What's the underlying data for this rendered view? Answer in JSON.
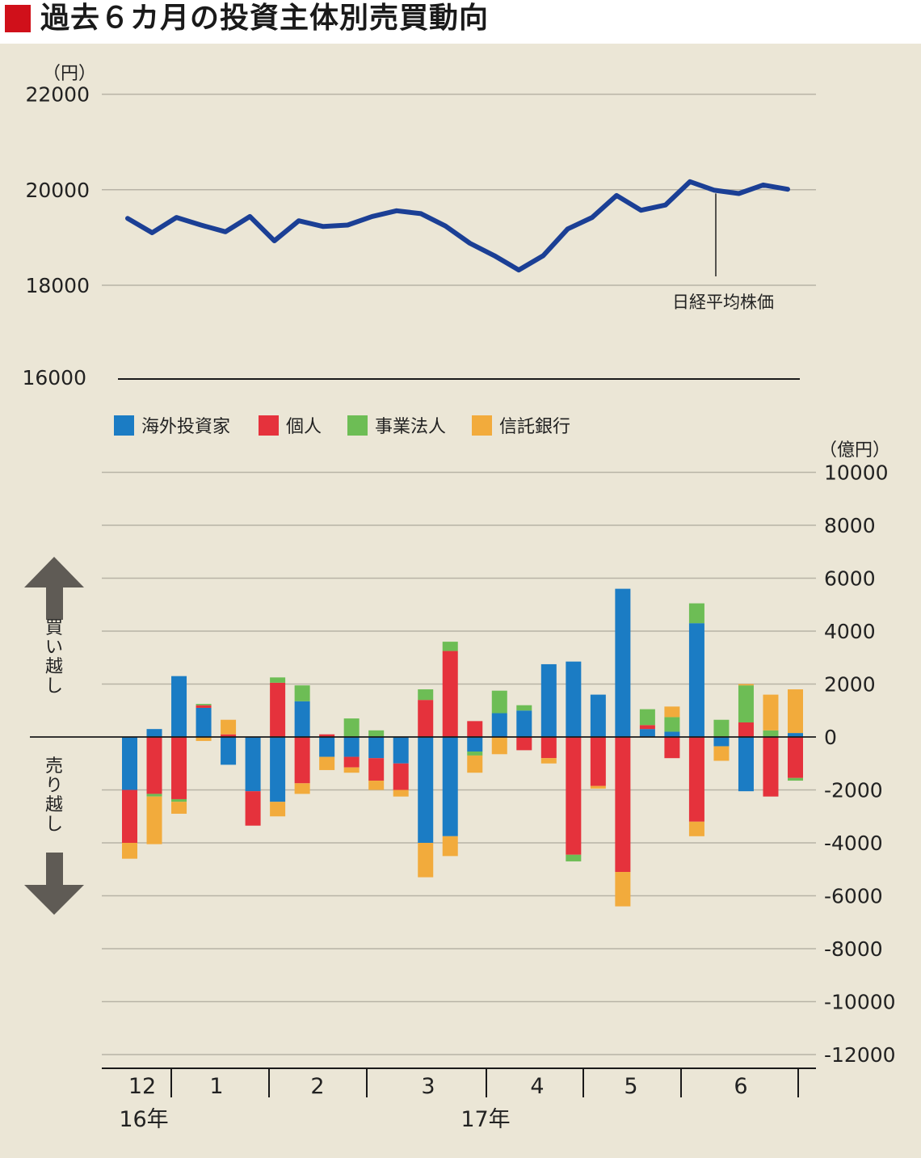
{
  "header": {
    "title": "過去６カ月の投資主体別売買動向"
  },
  "colors": {
    "line": "#1b3f95",
    "foreign": "#1b7cc4",
    "individual": "#e5323c",
    "corporate": "#6dbd55",
    "trust": "#f2ab3c",
    "grid": "#b8b3a6",
    "arrow": "#5f5b55",
    "panel": "#ebe6d6"
  },
  "chart_data": [
    {
      "type": "line",
      "unit_label": "（円）",
      "yticks": [
        "22000",
        "20000",
        "18000",
        "16000"
      ],
      "ylim": [
        16000,
        22000
      ],
      "annotation": "日経平均株価",
      "series": [
        {
          "name": "日経平均株価",
          "values": [
            19400,
            19100,
            19420,
            19260,
            19120,
            19440,
            18930,
            19350,
            19230,
            19260,
            19440,
            19560,
            19500,
            19240,
            18880,
            18620,
            18320,
            18620,
            19180,
            19420,
            19880,
            19570,
            19680,
            20170,
            19990,
            19920,
            20100,
            20010
          ]
        }
      ]
    },
    {
      "type": "bar",
      "stacked": true,
      "unit_label": "（億円）",
      "ylim": [
        -12000,
        10000
      ],
      "yticks": [
        "10000",
        "8000",
        "6000",
        "4000",
        "2000",
        "0",
        "-2000",
        "-4000",
        "-6000",
        "-8000",
        "-10000",
        "-12000"
      ],
      "legend": [
        "海外投資家",
        "個人",
        "事業法人",
        "信託銀行"
      ],
      "buy_label": "買い越し",
      "sell_label": "売り越し",
      "month_labels": [
        "12",
        "1",
        "2",
        "3",
        "4",
        "5",
        "6"
      ],
      "year_labels": [
        "16年",
        "17年"
      ],
      "series": [
        {
          "name": "海外投資家",
          "values": [
            -2000,
            300,
            2300,
            1100,
            -1050,
            -2050,
            -2450,
            1350,
            -750,
            -750,
            -800,
            -1000,
            -4000,
            -3750,
            -550,
            900,
            1000,
            2750,
            2850,
            1600,
            5600,
            300,
            200,
            4300,
            -350,
            -2050,
            0,
            150
          ]
        },
        {
          "name": "個人",
          "values": [
            -2000,
            -2150,
            -2350,
            100,
            100,
            -1300,
            2050,
            -1750,
            100,
            -400,
            -850,
            -1000,
            1400,
            3250,
            600,
            0,
            -500,
            -800,
            -4450,
            -1850,
            -5100,
            150,
            -800,
            -3200,
            0,
            550,
            -2250,
            -1550
          ]
        },
        {
          "name": "事業法人",
          "values": [
            0,
            -100,
            -100,
            50,
            0,
            0,
            200,
            600,
            0,
            700,
            250,
            0,
            400,
            350,
            -150,
            850,
            200,
            0,
            -250,
            0,
            0,
            600,
            550,
            750,
            650,
            1400,
            250,
            -100
          ]
        },
        {
          "name": "信託銀行",
          "values": [
            -600,
            -1800,
            -450,
            -150,
            550,
            0,
            -550,
            -400,
            -500,
            -200,
            -350,
            -250,
            -1300,
            -750,
            -650,
            -650,
            0,
            -200,
            0,
            -100,
            -1300,
            0,
            400,
            -550,
            -550,
            50,
            1350,
            1650
          ]
        }
      ]
    }
  ]
}
